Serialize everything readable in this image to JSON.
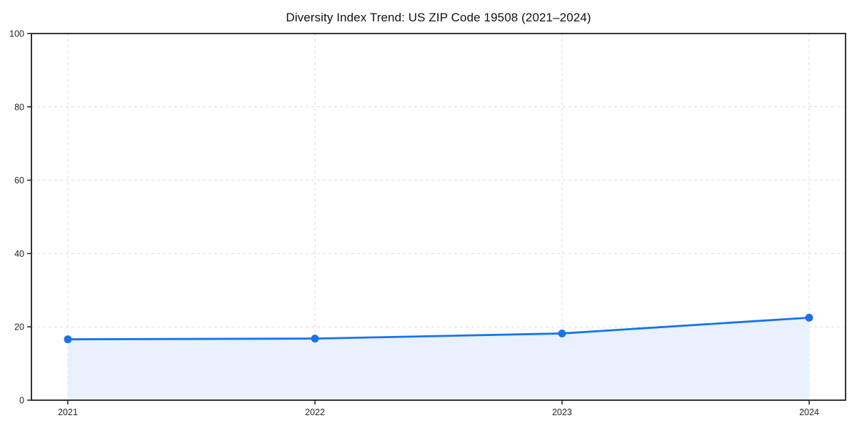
{
  "chart_data": {
    "type": "line",
    "title": "Diversity Index Trend: US ZIP Code 19508 (2021–2024)",
    "categories": [
      "2021",
      "2022",
      "2023",
      "2024"
    ],
    "series": [
      {
        "name": "Diversity Index",
        "values": [
          16.6,
          16.8,
          18.2,
          22.5
        ]
      }
    ],
    "xlabel": "",
    "ylabel": "",
    "ylim": [
      0,
      100
    ],
    "yticks": [
      0,
      20,
      40,
      60,
      80,
      100
    ],
    "grid": true,
    "grid_style": "dashed",
    "legend": "none",
    "line_color": "#1a73e8",
    "marker_color": "#1a73e8",
    "fill_color": "#e8f1fd",
    "marker": "circle"
  },
  "colors": {
    "background": "#ffffff",
    "spine": "#1f1f1f",
    "grid": "#dcdcdc",
    "tick_label": "#262626",
    "title": "#111111"
  }
}
